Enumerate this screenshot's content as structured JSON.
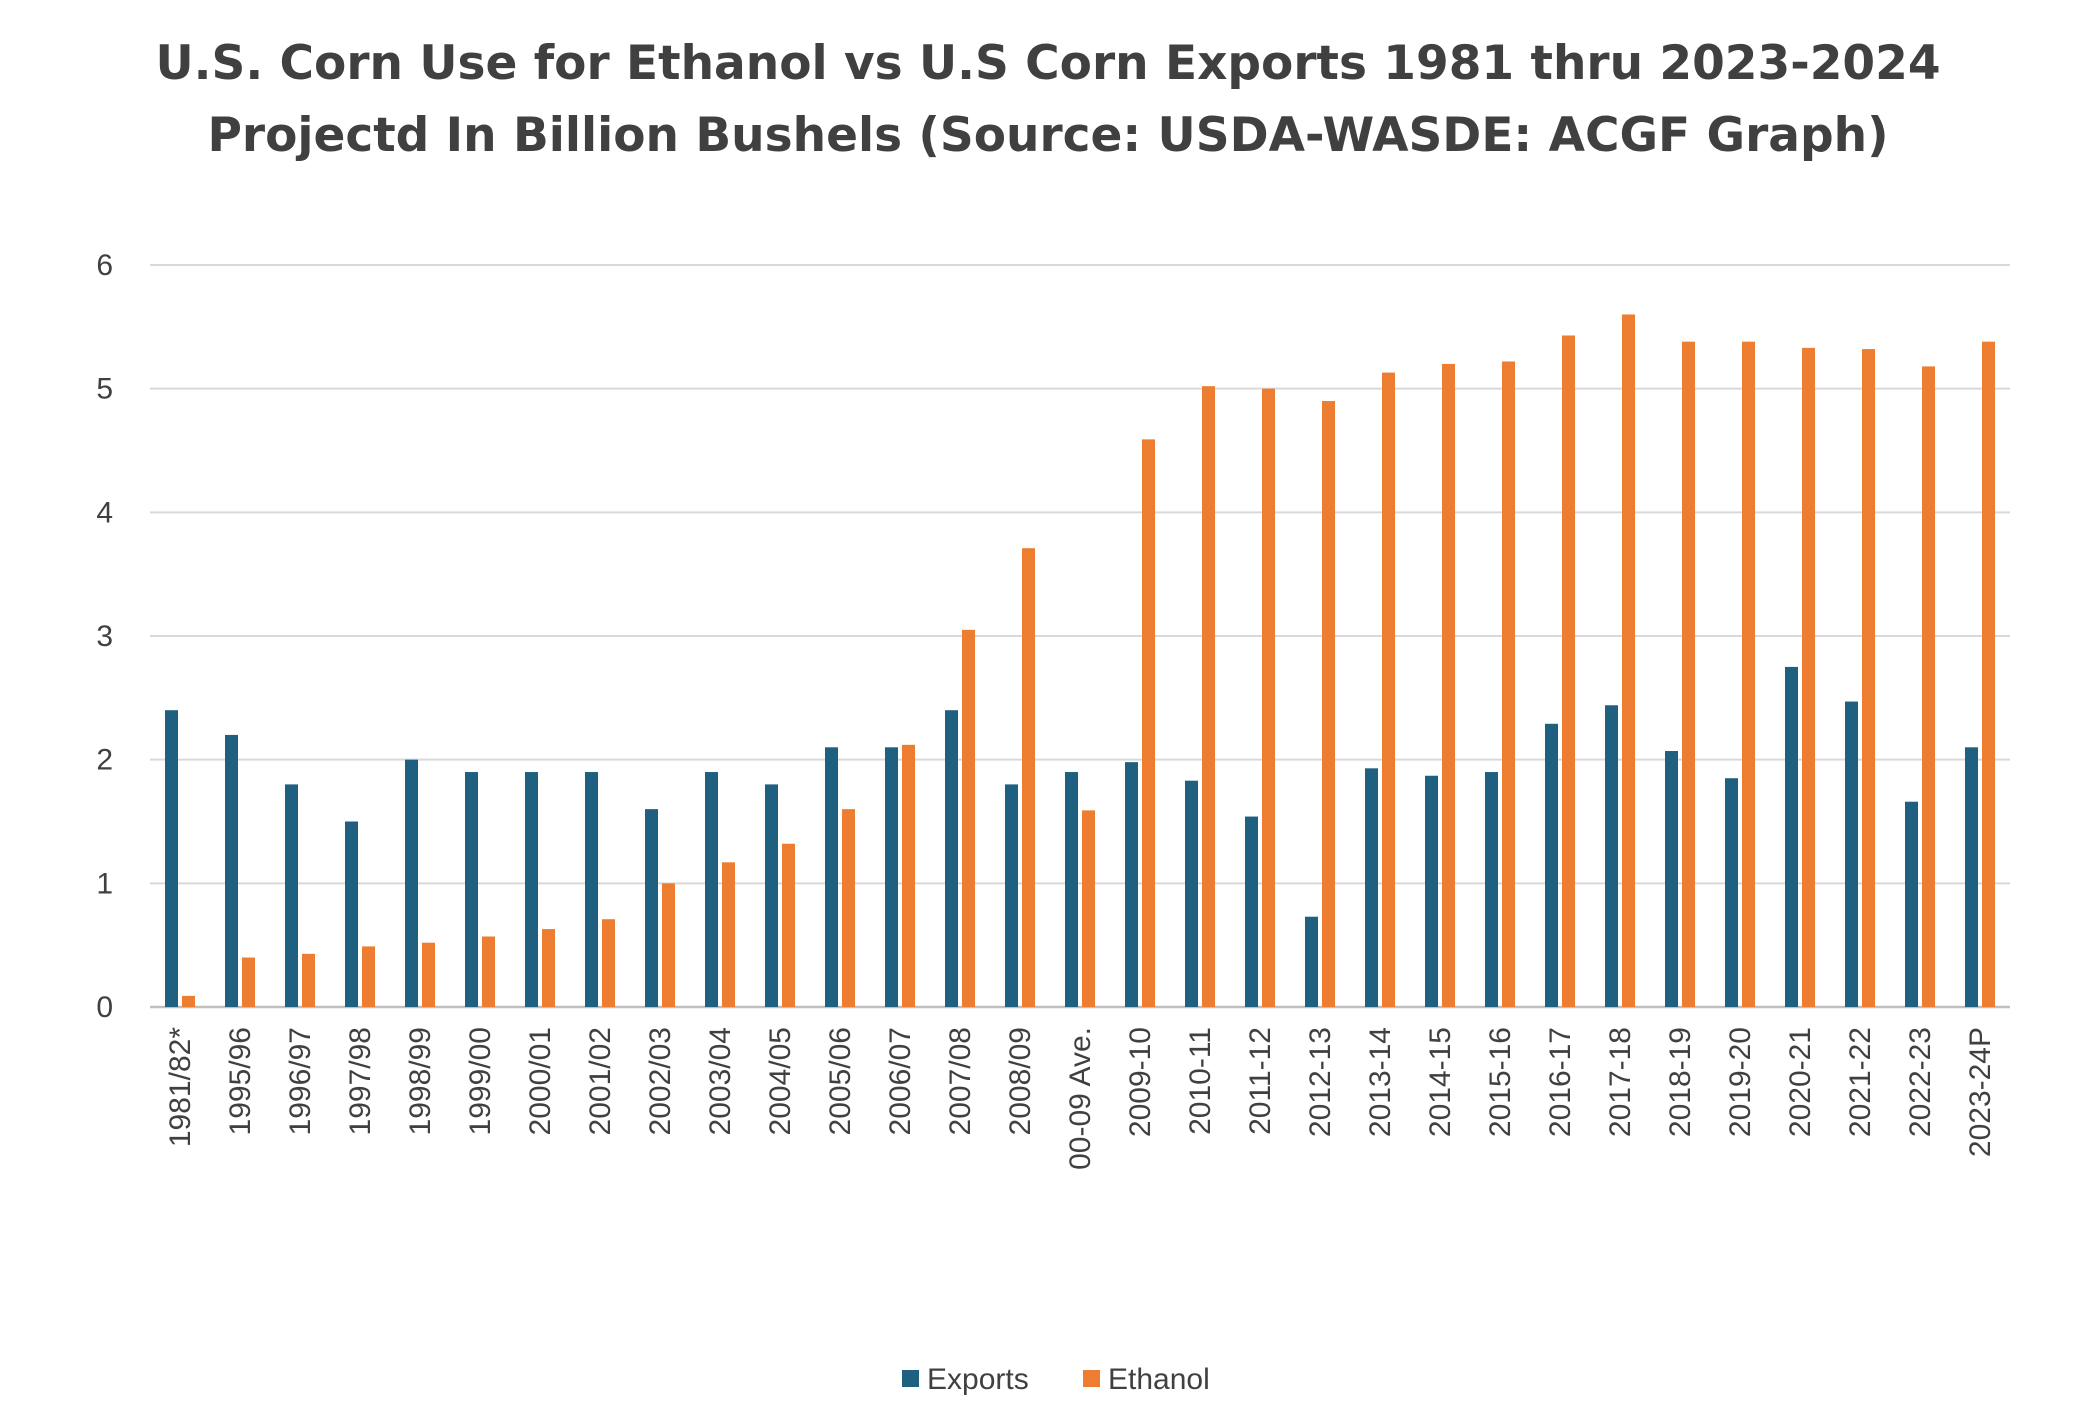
{
  "chart_data": {
    "type": "bar",
    "title": "U.S. Corn Use for Ethanol vs U.S Corn Exports 1981 thru 2023-2024 Projectd In Billion Bushels (Source: USDA-WASDE: ACGF Graph)",
    "xlabel": "",
    "ylabel": "",
    "ylim": [
      0,
      6
    ],
    "yticks": [
      "0",
      "1",
      "2",
      "3",
      "4",
      "5",
      "6"
    ],
    "grid": true,
    "legend_position": "bottom",
    "categories": [
      "1981/82*",
      "1995/96",
      "1996/97",
      "1997/98",
      "1998/99",
      "1999/00",
      "2000/01",
      "2001/02",
      "2002/03",
      "2003/04",
      "2004/05",
      "2005/06",
      "2006/07",
      "2007/08",
      "2008/09",
      "00-09 Ave.",
      "2009-10",
      "2010-11",
      "2011-12",
      "2012-13",
      "2013-14",
      "2014-15",
      "2015-16",
      "2016-17",
      "2017-18",
      "2018-19",
      "2019-20",
      "2020-21",
      "2021-22",
      "2022-23",
      "2023-24P"
    ],
    "series": [
      {
        "name": "Exports",
        "color": "#1F5F7F",
        "values": [
          2.4,
          2.2,
          1.8,
          1.5,
          2.0,
          1.9,
          1.9,
          1.9,
          1.6,
          1.9,
          1.8,
          2.1,
          2.1,
          2.4,
          1.8,
          1.9,
          1.98,
          1.83,
          1.54,
          0.73,
          1.93,
          1.87,
          1.9,
          2.29,
          2.44,
          2.07,
          1.85,
          2.75,
          2.47,
          1.66,
          2.1
        ]
      },
      {
        "name": "Ethanol",
        "color": "#ED7D31",
        "values": [
          0.09,
          0.4,
          0.43,
          0.49,
          0.52,
          0.57,
          0.63,
          0.71,
          1.0,
          1.17,
          1.32,
          1.6,
          2.12,
          3.05,
          3.71,
          1.59,
          4.59,
          5.02,
          5.0,
          4.9,
          5.13,
          5.2,
          5.22,
          5.43,
          5.6,
          5.38,
          5.38,
          5.33,
          5.32,
          5.18,
          5.38
        ]
      }
    ]
  }
}
